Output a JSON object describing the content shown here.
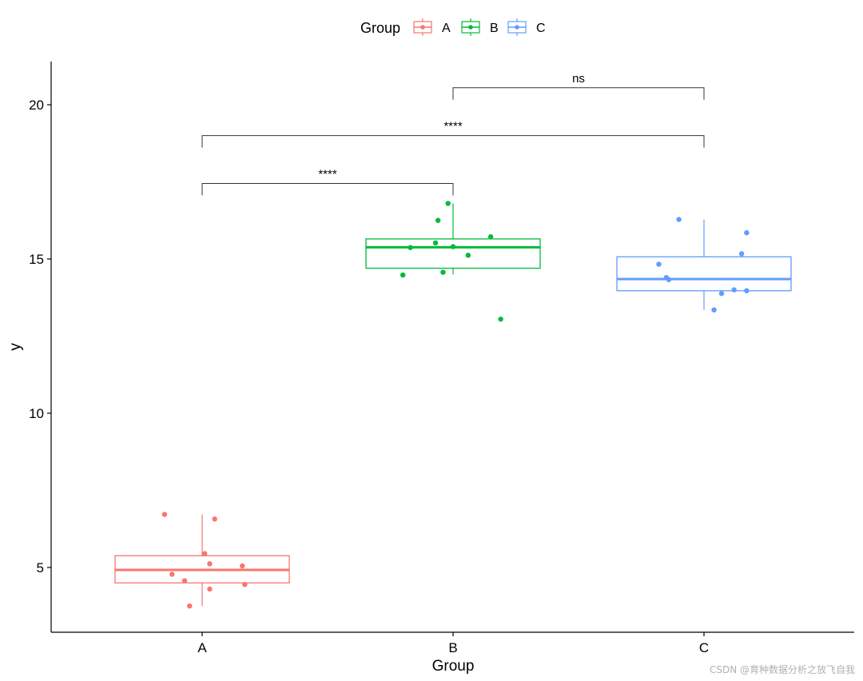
{
  "chart_data": {
    "type": "boxplot",
    "xlabel": "Group",
    "ylabel": "y",
    "ylim": [
      2.9,
      21.4
    ],
    "yticks": [
      5,
      10,
      15,
      20
    ],
    "categories": [
      "A",
      "B",
      "C"
    ],
    "legend": {
      "title": "Group",
      "position": "top",
      "entries": [
        "A",
        "B",
        "C"
      ]
    },
    "colors": {
      "A": "#F8766D",
      "B": "#00BA38",
      "C": "#619CFF"
    },
    "boxes": [
      {
        "group": "A",
        "min": 3.75,
        "q1": 4.5,
        "median": 4.92,
        "q3": 5.38,
        "max": 6.72
      },
      {
        "group": "B",
        "min": 14.5,
        "q1": 14.7,
        "median": 15.38,
        "q3": 15.65,
        "max": 16.8
      },
      {
        "group": "C",
        "min": 13.35,
        "q1": 13.97,
        "median": 14.35,
        "q3": 15.07,
        "max": 16.28
      }
    ],
    "points": [
      {
        "group": "A",
        "jitter": -0.15,
        "y": 6.72
      },
      {
        "group": "A",
        "jitter": 0.05,
        "y": 6.57
      },
      {
        "group": "A",
        "jitter": 0.01,
        "y": 5.45
      },
      {
        "group": "A",
        "jitter": 0.03,
        "y": 5.12
      },
      {
        "group": "A",
        "jitter": 0.16,
        "y": 5.05
      },
      {
        "group": "A",
        "jitter": -0.12,
        "y": 4.78
      },
      {
        "group": "A",
        "jitter": -0.07,
        "y": 4.57
      },
      {
        "group": "A",
        "jitter": 0.17,
        "y": 4.45
      },
      {
        "group": "A",
        "jitter": 0.03,
        "y": 4.3
      },
      {
        "group": "A",
        "jitter": -0.05,
        "y": 3.75
      },
      {
        "group": "B",
        "jitter": -0.02,
        "y": 16.8
      },
      {
        "group": "B",
        "jitter": -0.06,
        "y": 16.25
      },
      {
        "group": "B",
        "jitter": 0.15,
        "y": 15.72
      },
      {
        "group": "B",
        "jitter": -0.07,
        "y": 15.52
      },
      {
        "group": "B",
        "jitter": 0.0,
        "y": 15.4
      },
      {
        "group": "B",
        "jitter": -0.17,
        "y": 15.37
      },
      {
        "group": "B",
        "jitter": 0.06,
        "y": 15.12
      },
      {
        "group": "B",
        "jitter": -0.04,
        "y": 14.57
      },
      {
        "group": "B",
        "jitter": -0.2,
        "y": 14.48
      },
      {
        "group": "B",
        "jitter": 0.19,
        "y": 13.05
      },
      {
        "group": "C",
        "jitter": -0.1,
        "y": 16.28
      },
      {
        "group": "C",
        "jitter": 0.17,
        "y": 15.85
      },
      {
        "group": "C",
        "jitter": 0.15,
        "y": 15.17
      },
      {
        "group": "C",
        "jitter": -0.18,
        "y": 14.83
      },
      {
        "group": "C",
        "jitter": -0.15,
        "y": 14.4
      },
      {
        "group": "C",
        "jitter": -0.14,
        "y": 14.33
      },
      {
        "group": "C",
        "jitter": 0.12,
        "y": 14.0
      },
      {
        "group": "C",
        "jitter": 0.17,
        "y": 13.97
      },
      {
        "group": "C",
        "jitter": 0.07,
        "y": 13.88
      },
      {
        "group": "C",
        "jitter": 0.04,
        "y": 13.35
      }
    ],
    "comparisons": [
      {
        "from": "A",
        "to": "B",
        "y": 17.45,
        "label": "****"
      },
      {
        "from": "A",
        "to": "C",
        "y": 19.0,
        "label": "****"
      },
      {
        "from": "B",
        "to": "C",
        "y": 20.55,
        "label": "ns"
      }
    ]
  },
  "watermark": "CSDN @育种数据分析之放飞自我"
}
